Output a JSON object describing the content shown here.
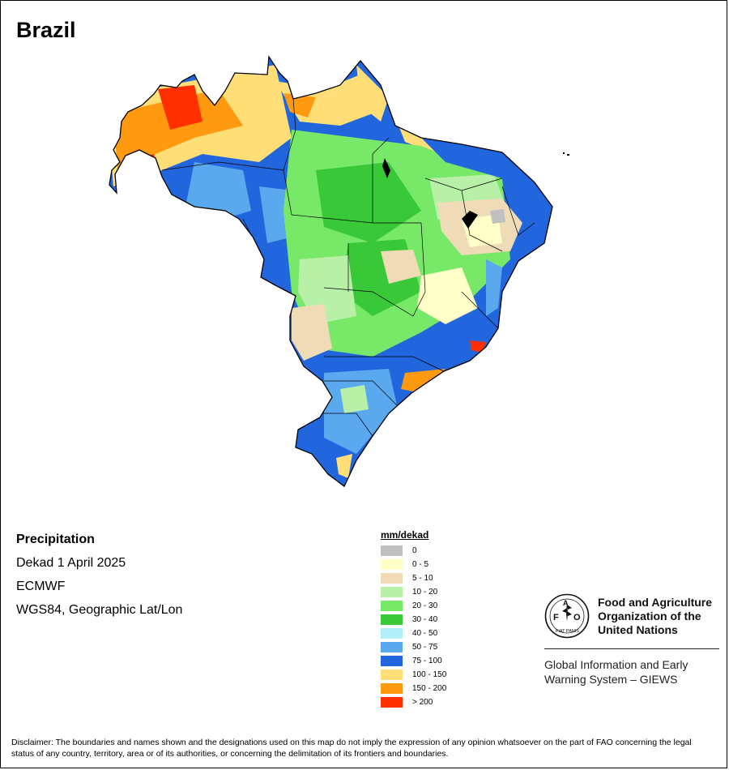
{
  "map": {
    "title": "Brazil",
    "info": {
      "variable": "Precipitation",
      "period": "Dekad 1 April 2025",
      "source": "ECMWF",
      "projection": "WGS84, Geographic Lat/Lon"
    },
    "legend": {
      "title": "mm/dekad",
      "classes": [
        {
          "label": "0",
          "color": "#c0c0c0"
        },
        {
          "label": "0 - 5",
          "color": "#ffffc8"
        },
        {
          "label": "5 - 10",
          "color": "#efdcb6"
        },
        {
          "label": "10 - 20",
          "color": "#b8f0a8"
        },
        {
          "label": "20 - 30",
          "color": "#78e868"
        },
        {
          "label": "30 - 40",
          "color": "#38c838"
        },
        {
          "label": "40 - 50",
          "color": "#b0eef8"
        },
        {
          "label": "50 - 75",
          "color": "#5aa8ee"
        },
        {
          "label": "75 - 100",
          "color": "#2266dd"
        },
        {
          "label": "100 - 150",
          "color": "#ffdd77"
        },
        {
          "label": "150 - 200",
          "color": "#ff9a10"
        },
        {
          "label": "> 200",
          "color": "#ff3000"
        }
      ]
    }
  },
  "org": {
    "logo_icon": "fao-emblem-icon",
    "logo_text": "FAO",
    "logo_motto": "FIAT PANIS",
    "name_lines": [
      "Food and Agriculture",
      "Organization of the",
      "United Nations"
    ],
    "system_lines": [
      "Global Information and Early",
      "Warning System – GIEWS"
    ]
  },
  "disclaimer": "Disclaimer: The boundaries and names shown and the designations used on this map do not imply the expression of any opinion whatsoever on the part of FAO concerning the legal status of any country, territory, area or of its authorities, or concerning the delimitation of its frontiers and boundaries."
}
